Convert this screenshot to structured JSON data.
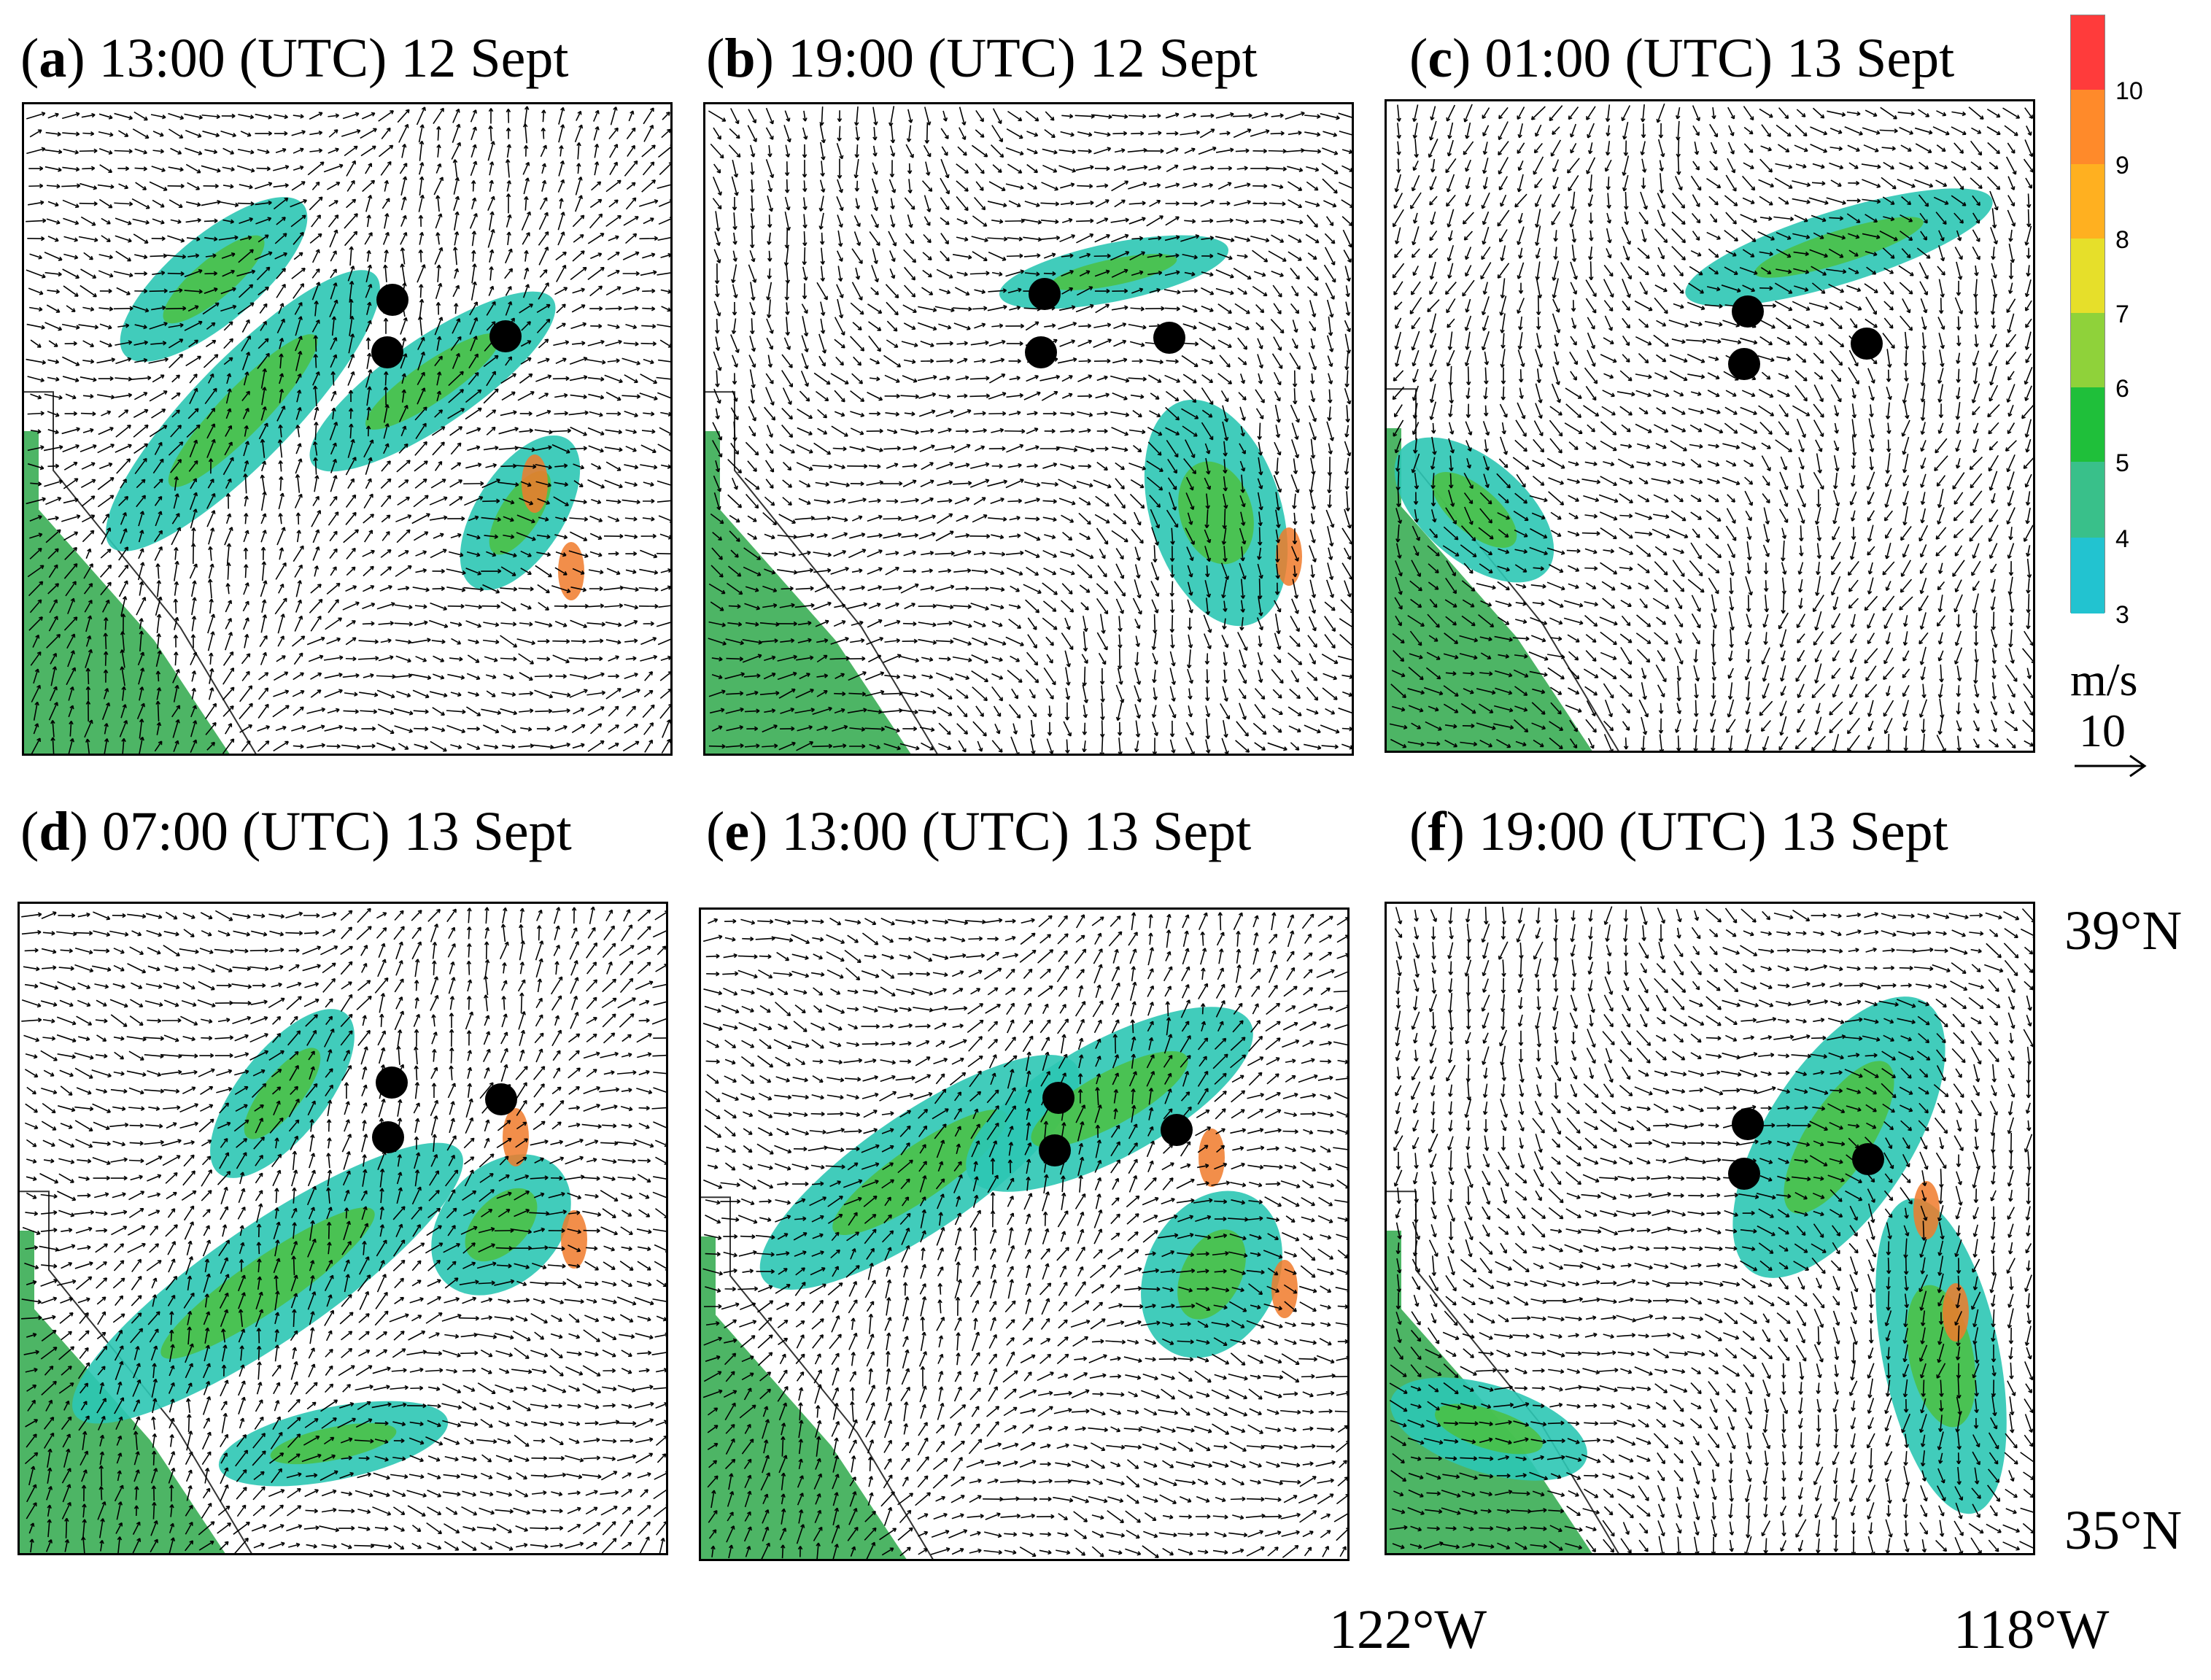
{
  "panels": [
    {
      "letter": "a",
      "rest": " 13:00 (UTC) 12 Sept",
      "open": "("
    },
    {
      "letter": "b",
      "rest": " 19:00 (UTC) 12 Sept",
      "open": "("
    },
    {
      "letter": "c",
      "rest": " 01:00 (UTC) 13 Sept",
      "open": "("
    },
    {
      "letter": "d",
      "rest": " 07:00 (UTC) 13 Sept",
      "open": "("
    },
    {
      "letter": "e",
      "rest": " 13:00 (UTC) 13 Sept",
      "open": "("
    },
    {
      "letter": "f",
      "rest": " 19:00 (UTC) 13 Sept",
      "open": "("
    }
  ],
  "colorbar": {
    "ticks": [
      "10",
      "9",
      "8",
      "7",
      "6",
      "5",
      "4",
      "3"
    ],
    "colors": [
      "#ff3b3b",
      "#ff8a2a",
      "#ffb020",
      "#e6df2a",
      "#8fd23a",
      "#1fbf3a",
      "#39c08a",
      "#22c3d0"
    ]
  },
  "units": {
    "label": "m/s",
    "reference": "10"
  },
  "coordinates": {
    "lat_top": "39°N",
    "lat_bottom": "35°N",
    "lon_left": "122°W",
    "lon_right": "118°W"
  },
  "colors": {
    "land_green": "#2ea84a",
    "speed_teal": "#2cc6b4",
    "speed_high": "#f07a2a",
    "dot": "#000000"
  }
}
